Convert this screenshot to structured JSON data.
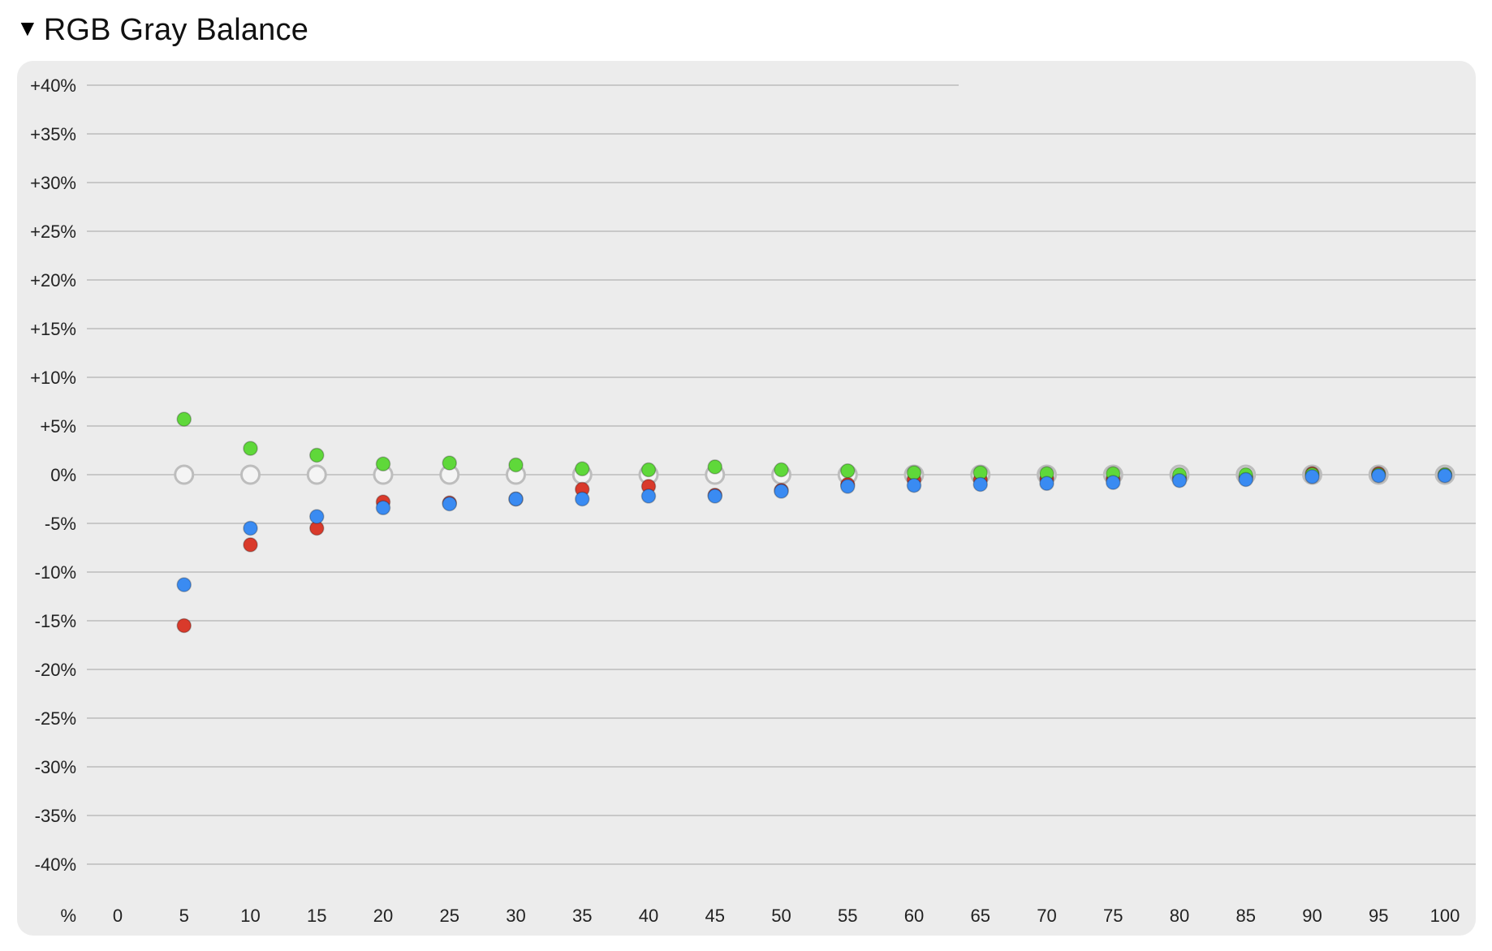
{
  "section": {
    "title": "RGB Gray Balance",
    "disclosure_icon": "triangle-down-icon"
  },
  "chart_data": {
    "type": "scatter",
    "title": "RGB Gray Balance",
    "x": [
      5,
      10,
      15,
      20,
      25,
      30,
      35,
      40,
      45,
      50,
      55,
      60,
      65,
      70,
      75,
      80,
      85,
      90,
      95,
      100
    ],
    "x_ticks": [
      "0",
      "5",
      "10",
      "15",
      "20",
      "25",
      "30",
      "35",
      "40",
      "45",
      "50",
      "55",
      "60",
      "65",
      "70",
      "75",
      "80",
      "85",
      "90",
      "95",
      "100"
    ],
    "x_tick_values": [
      0,
      5,
      10,
      15,
      20,
      25,
      30,
      35,
      40,
      45,
      50,
      55,
      60,
      65,
      70,
      75,
      80,
      85,
      90,
      95,
      100
    ],
    "x_axis_unit_label": "%",
    "xlim": [
      0,
      100
    ],
    "y_ticks": [
      "+40%",
      "+35%",
      "+30%",
      "+25%",
      "+20%",
      "+15%",
      "+10%",
      "+5%",
      "0%",
      "-5%",
      "-10%",
      "-15%",
      "-20%",
      "-25%",
      "-30%",
      "-35%",
      "-40%"
    ],
    "y_tick_values": [
      40,
      35,
      30,
      25,
      20,
      15,
      10,
      5,
      0,
      -5,
      -10,
      -15,
      -20,
      -25,
      -30,
      -35,
      -40
    ],
    "ylim": [
      -40,
      40
    ],
    "grid": true,
    "series": [
      {
        "color": "#bdbdbd",
        "marker": "hollow-circle",
        "values": [
          0,
          0,
          0,
          0,
          0,
          0,
          0,
          0,
          0,
          0,
          0,
          0,
          0,
          0,
          0,
          0,
          0,
          0,
          0,
          0
        ]
      },
      {
        "color": "#d93a2b",
        "marker": "filled-circle",
        "values": [
          -15.5,
          -7.2,
          -5.5,
          -2.8,
          -2.9,
          -2.5,
          -1.5,
          -1.2,
          -2.1,
          -1.6,
          -1.0,
          -0.5,
          -0.5,
          -0.4,
          -0.4,
          -0.3,
          -0.2,
          0.1,
          0.1,
          0.0
        ]
      },
      {
        "color": "#5fd83a",
        "marker": "filled-circle",
        "values": [
          5.7,
          2.7,
          2.0,
          1.1,
          1.2,
          1.0,
          0.6,
          0.5,
          0.8,
          0.5,
          0.4,
          0.2,
          0.2,
          0.1,
          0.1,
          0.0,
          0.0,
          0.0,
          0.0,
          0.0
        ]
      },
      {
        "color": "#3a8bf2",
        "marker": "filled-circle",
        "values": [
          -11.3,
          -5.5,
          -4.3,
          -3.4,
          -3.0,
          -2.5,
          -2.5,
          -2.2,
          -2.2,
          -1.7,
          -1.2,
          -1.1,
          -1.0,
          -0.9,
          -0.8,
          -0.6,
          -0.5,
          -0.2,
          -0.1,
          -0.1
        ]
      }
    ]
  }
}
